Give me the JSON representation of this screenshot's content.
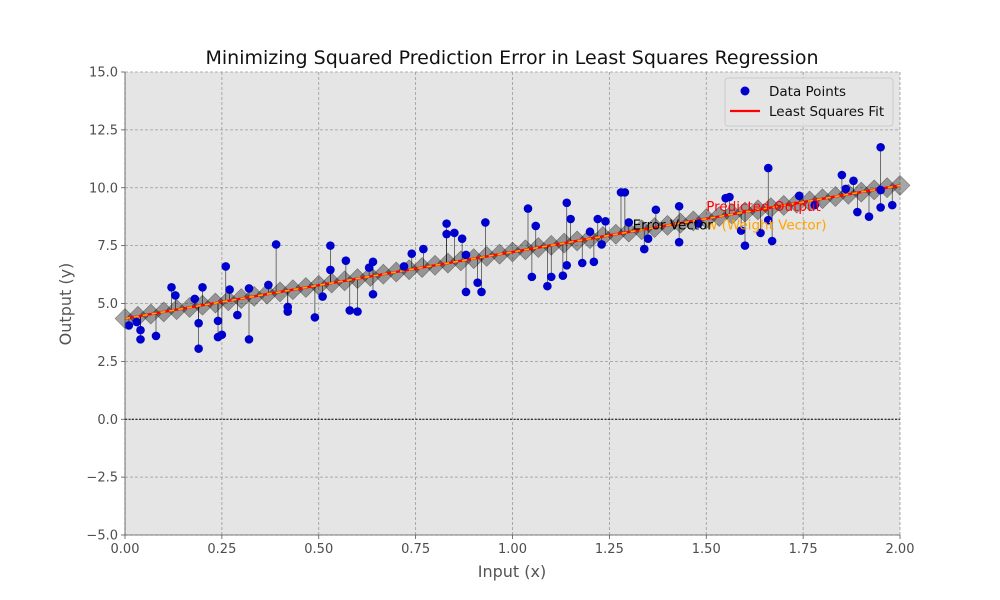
{
  "chart_data": {
    "type": "scatter",
    "title": "Minimizing Squared Prediction Error in Least Squares Regression",
    "xlabel": "Input (x)",
    "ylabel": "Output (y)",
    "xlim": [
      0,
      2
    ],
    "ylim": [
      -5,
      15
    ],
    "xticks": [
      0,
      0.25,
      0.5,
      0.75,
      1.0,
      1.25,
      1.5,
      1.75,
      2.0
    ],
    "xtick_labels": [
      "0.00",
      "0.25",
      "0.50",
      "0.75",
      "1.00",
      "1.25",
      "1.50",
      "1.75",
      "2.00"
    ],
    "yticks": [
      -5,
      -2.5,
      0,
      2.5,
      5,
      7.5,
      10,
      12.5,
      15
    ],
    "ytick_labels": [
      "−5.0",
      "−2.5",
      "0.0",
      "2.5",
      "5.0",
      "7.5",
      "10.0",
      "12.5",
      "15.0"
    ],
    "grid": true,
    "legend_position": "top-right",
    "legend": [
      "Data Points",
      "Least Squares Fit"
    ],
    "series": [
      {
        "name": "Data Points",
        "kind": "scatter",
        "color": "#0000cc",
        "points": [
          [
            0.01,
            4.05
          ],
          [
            0.03,
            4.2
          ],
          [
            0.04,
            3.85
          ],
          [
            0.04,
            3.45
          ],
          [
            0.08,
            3.6
          ],
          [
            0.12,
            5.7
          ],
          [
            0.13,
            5.35
          ],
          [
            0.18,
            5.2
          ],
          [
            0.19,
            4.15
          ],
          [
            0.19,
            3.05
          ],
          [
            0.2,
            5.7
          ],
          [
            0.24,
            4.25
          ],
          [
            0.24,
            3.55
          ],
          [
            0.25,
            3.65
          ],
          [
            0.26,
            6.6
          ],
          [
            0.27,
            5.6
          ],
          [
            0.29,
            4.5
          ],
          [
            0.32,
            5.65
          ],
          [
            0.32,
            3.45
          ],
          [
            0.37,
            5.8
          ],
          [
            0.39,
            7.55
          ],
          [
            0.42,
            4.65
          ],
          [
            0.42,
            4.85
          ],
          [
            0.49,
            4.4
          ],
          [
            0.51,
            5.3
          ],
          [
            0.53,
            7.5
          ],
          [
            0.53,
            6.45
          ],
          [
            0.57,
            6.85
          ],
          [
            0.58,
            4.7
          ],
          [
            0.6,
            4.65
          ],
          [
            0.63,
            6.55
          ],
          [
            0.64,
            6.8
          ],
          [
            0.64,
            5.4
          ],
          [
            0.72,
            6.6
          ],
          [
            0.74,
            7.15
          ],
          [
            0.77,
            7.35
          ],
          [
            0.83,
            8.45
          ],
          [
            0.83,
            8.0
          ],
          [
            0.85,
            8.05
          ],
          [
            0.87,
            7.8
          ],
          [
            0.88,
            7.1
          ],
          [
            0.88,
            5.5
          ],
          [
            0.91,
            5.9
          ],
          [
            0.92,
            5.5
          ],
          [
            0.93,
            8.5
          ],
          [
            1.04,
            9.1
          ],
          [
            1.05,
            6.15
          ],
          [
            1.06,
            8.35
          ],
          [
            1.09,
            5.75
          ],
          [
            1.1,
            6.15
          ],
          [
            1.13,
            6.2
          ],
          [
            1.14,
            9.35
          ],
          [
            1.14,
            6.65
          ],
          [
            1.15,
            8.65
          ],
          [
            1.18,
            6.75
          ],
          [
            1.2,
            8.1
          ],
          [
            1.21,
            6.8
          ],
          [
            1.22,
            8.65
          ],
          [
            1.23,
            7.55
          ],
          [
            1.24,
            8.55
          ],
          [
            1.28,
            9.8
          ],
          [
            1.29,
            9.8
          ],
          [
            1.3,
            8.5
          ],
          [
            1.34,
            7.35
          ],
          [
            1.35,
            7.8
          ],
          [
            1.37,
            9.05
          ],
          [
            1.43,
            9.2
          ],
          [
            1.43,
            7.65
          ],
          [
            1.48,
            8.45
          ],
          [
            1.55,
            9.55
          ],
          [
            1.56,
            9.6
          ],
          [
            1.59,
            8.15
          ],
          [
            1.6,
            7.5
          ],
          [
            1.64,
            8.05
          ],
          [
            1.66,
            8.6
          ],
          [
            1.66,
            10.85
          ],
          [
            1.67,
            7.7
          ],
          [
            1.74,
            9.65
          ],
          [
            1.78,
            9.25
          ],
          [
            1.85,
            10.55
          ],
          [
            1.86,
            9.95
          ],
          [
            1.88,
            10.3
          ],
          [
            1.89,
            8.95
          ],
          [
            1.92,
            8.75
          ],
          [
            1.95,
            11.75
          ],
          [
            1.95,
            9.9
          ],
          [
            1.95,
            9.15
          ],
          [
            1.98,
            9.25
          ]
        ]
      },
      {
        "name": "Least Squares Fit",
        "kind": "line",
        "color": "#ff0000",
        "x": [
          0,
          2
        ],
        "y": [
          4.35,
          10.1
        ]
      }
    ],
    "residual_line_color": "#000000",
    "error_band_color": "#000000",
    "annotations": [
      {
        "text": "Predicted Output",
        "x": 1.5,
        "y": 9.0,
        "color": "#ff0000"
      },
      {
        "text": "w (Weight Vector)",
        "x": 1.5,
        "y": 8.2,
        "color": "#ffa500"
      },
      {
        "text": "Error Vector",
        "x": 1.31,
        "y": 8.2,
        "color": "#000000"
      }
    ],
    "colors": {
      "background": "#e5e5e5",
      "grid": "#999999",
      "data_points": "#0000cc",
      "fit_line": "#ff0000",
      "fit_overlay": "#ffa500"
    }
  }
}
